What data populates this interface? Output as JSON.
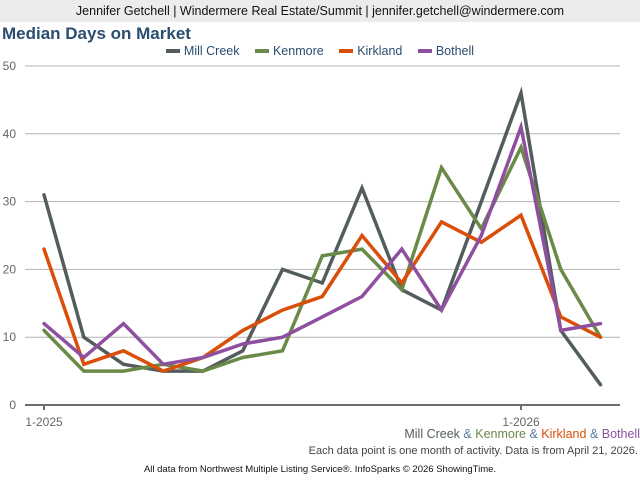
{
  "header": {
    "text": "Jennifer Getchell | Windermere Real Estate/Summit | jennifer.getchell@windermere.com"
  },
  "legend": [
    {
      "label": "Mill Creek",
      "color": "#545d5d"
    },
    {
      "label": "Kenmore",
      "color": "#6a8a47"
    },
    {
      "label": "Kirkland",
      "color": "#d94f0a"
    },
    {
      "label": "Bothell",
      "color": "#8f4f9f"
    }
  ],
  "footer": {
    "series_label": [
      "Mill Creek",
      "Kenmore",
      "Kirkland",
      "Bothell"
    ],
    "ampersand": "&",
    "note": "Each data point is one month of activity. Data is from April 21, 2026.",
    "credit": "All data from Northwest Multiple Listing Service®. InfoSparks © 2026 ShowingTime."
  },
  "chart_data": {
    "type": "line",
    "title": "Median Days on Market",
    "xlabel": "",
    "ylabel": "",
    "ylim": [
      0,
      50
    ],
    "yticks": [
      0,
      10,
      20,
      30,
      40,
      50
    ],
    "grid": true,
    "legend_position": "top-center",
    "x": [
      "1-2025",
      "2-2025",
      "3-2025",
      "4-2025",
      "5-2025",
      "6-2025",
      "7-2025",
      "8-2025",
      "9-2025",
      "10-2025",
      "11-2025",
      "12-2025",
      "1-2026",
      "2-2026",
      "3-2026"
    ],
    "xtick_labels": [
      {
        "index": 0,
        "label": "1-2025"
      },
      {
        "index": 12,
        "label": "1-2026"
      }
    ],
    "series": [
      {
        "name": "Mill Creek",
        "color": "#545d5d",
        "values": [
          31,
          10,
          6,
          5,
          5,
          8,
          20,
          18,
          32,
          17,
          14,
          30,
          46,
          11,
          3
        ]
      },
      {
        "name": "Kenmore",
        "color": "#6a8a47",
        "values": [
          11,
          5,
          5,
          6,
          5,
          7,
          8,
          22,
          23,
          17,
          35,
          26,
          38,
          20,
          10
        ]
      },
      {
        "name": "Kirkland",
        "color": "#d94f0a",
        "values": [
          23,
          6,
          8,
          5,
          7,
          11,
          14,
          16,
          25,
          18,
          27,
          24,
          28,
          13,
          10
        ]
      },
      {
        "name": "Bothell",
        "color": "#8f4f9f",
        "values": [
          12,
          7,
          12,
          6,
          7,
          9,
          10,
          13,
          16,
          23,
          14,
          25,
          41,
          11,
          12
        ]
      }
    ]
  }
}
